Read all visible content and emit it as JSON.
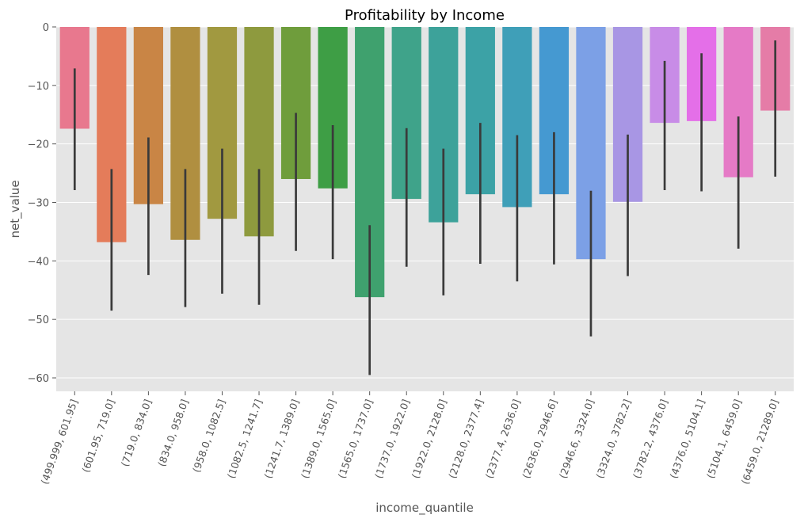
{
  "chart_data": {
    "type": "bar",
    "title": "Profitability by Income",
    "xlabel": "income_quantile",
    "ylabel": "net_value",
    "ylim": [
      -62.3,
      0
    ],
    "yticks": [
      0,
      -10,
      -20,
      -30,
      -40,
      -50,
      -60
    ],
    "grid": true,
    "categories": [
      "(499.999, 601.95]",
      "(601.95, 719.0]",
      "(719.0, 834.0]",
      "(834.0, 958.0]",
      "(958.0, 1082.5]",
      "(1082.5, 1241.7]",
      "(1241.7, 1389.0]",
      "(1389.0, 1565.0]",
      "(1565.0, 1737.0]",
      "(1737.0, 1922.0]",
      "(1922.0, 2128.0]",
      "(2128.0, 2377.4]",
      "(2377.4, 2636.0]",
      "(2636.0, 2946.6]",
      "(2946.6, 3324.0]",
      "(3324.0, 3782.2]",
      "(3782.2, 4376.0]",
      "(4376.0, 5104.1]",
      "(5104.1, 6459.0]",
      "(6459.0, 21289.0]"
    ],
    "values": [
      -17.4,
      -36.8,
      -30.3,
      -36.4,
      -32.8,
      -35.8,
      -26.0,
      -27.6,
      -46.2,
      -29.4,
      -33.4,
      -28.6,
      -30.8,
      -28.6,
      -39.7,
      -29.9,
      -16.4,
      -16.1,
      -25.7,
      -14.3
    ],
    "errors": [
      [
        -27.9,
        -7.1
      ],
      [
        -48.5,
        -24.3
      ],
      [
        -42.4,
        -18.9
      ],
      [
        -47.9,
        -24.3
      ],
      [
        -45.6,
        -20.8
      ],
      [
        -47.5,
        -24.3
      ],
      [
        -38.3,
        -14.7
      ],
      [
        -39.7,
        -16.8
      ],
      [
        -59.5,
        -33.9
      ],
      [
        -41.0,
        -17.3
      ],
      [
        -45.9,
        -20.8
      ],
      [
        -40.5,
        -16.4
      ],
      [
        -43.5,
        -18.5
      ],
      [
        -40.6,
        -18.0
      ],
      [
        -52.9,
        -28.0
      ],
      [
        -42.6,
        -18.4
      ],
      [
        -27.9,
        -5.8
      ],
      [
        -28.1,
        -4.5
      ],
      [
        -37.9,
        -15.3
      ],
      [
        -25.6,
        -2.3
      ]
    ],
    "colors": [
      "#E8788E",
      "#E47C5A",
      "#C98545",
      "#B08F40",
      "#A19940",
      "#8E9A3E",
      "#6F9D3C",
      "#3E9E45",
      "#3FA16E",
      "#3FA38A",
      "#3DA29A",
      "#3CA2A6",
      "#3F9FB8",
      "#4599D1",
      "#7CA0E6",
      "#A896E4",
      "#C88CE7",
      "#E46FE8",
      "#E57AC6",
      "#E57CA7"
    ],
    "error_color": "#3a3a3a"
  }
}
